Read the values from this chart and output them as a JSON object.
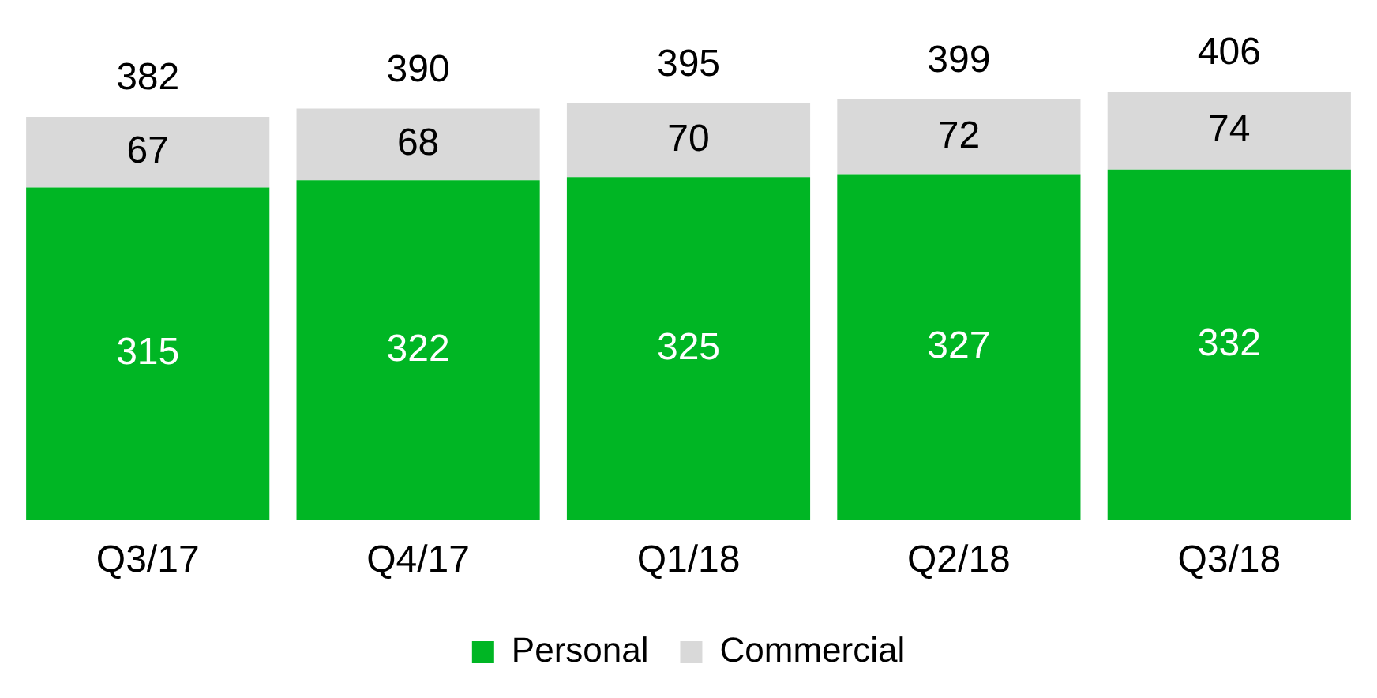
{
  "chart_data": {
    "type": "bar",
    "stacked": true,
    "categories": [
      "Q3/17",
      "Q4/17",
      "Q1/18",
      "Q2/18",
      "Q3/18"
    ],
    "series": [
      {
        "name": "Personal",
        "color": "#00b624",
        "values": [
          315,
          322,
          325,
          327,
          332
        ]
      },
      {
        "name": "Commercial",
        "color": "#d9d9d9",
        "values": [
          67,
          68,
          70,
          72,
          74
        ]
      }
    ],
    "totals": [
      "382",
      "390",
      "395",
      "399",
      "406"
    ],
    "data_labels": true,
    "grid": false,
    "legend": "bottom"
  }
}
